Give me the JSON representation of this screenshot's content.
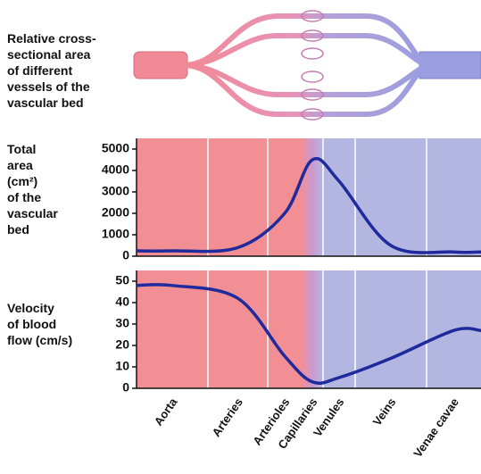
{
  "illustration_label": [
    "Relative cross-",
    "sectional area",
    "of different",
    "vessels of the",
    "vascular bed"
  ],
  "chart_data": [
    {
      "type": "line",
      "y_label": [
        "Total",
        "area",
        "(cm²)",
        "of the",
        "vascular",
        "bed"
      ],
      "values": [
        250,
        400,
        2000,
        4500,
        3500,
        500,
        200
      ],
      "color": "#1f2a9c",
      "ylim": [
        0,
        5500
      ],
      "yticks": [
        0,
        1000,
        2000,
        3000,
        4000,
        5000
      ]
    },
    {
      "type": "line",
      "y_label": [
        "Velocity",
        "of blood",
        "flow (cm/s)"
      ],
      "categories": [
        "Aorta",
        "Arteries",
        "Arterioles",
        "Capillaries",
        "Venules",
        "Veins",
        "Venae cavae"
      ],
      "values": [
        48,
        42,
        15,
        3,
        5,
        14,
        27
      ],
      "color": "#1f2a9c",
      "ylim": [
        0,
        55
      ],
      "yticks": [
        0,
        10,
        20,
        30,
        40,
        50
      ]
    }
  ]
}
